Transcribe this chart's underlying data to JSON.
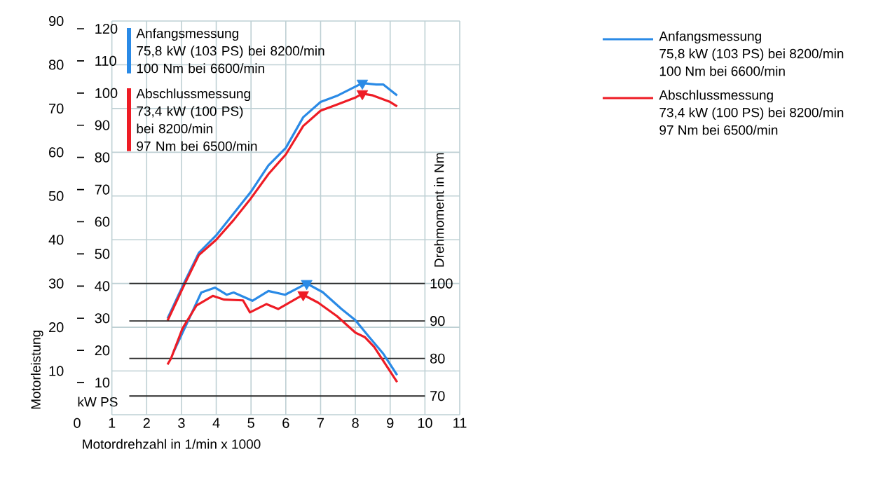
{
  "chart_data": {
    "type": "line",
    "xlabel": "Motordrehzahl in 1/min x 1000",
    "ylabel": "Motorleistung",
    "y3label": "Drehmoment in Nm",
    "xlim": [
      0,
      11
    ],
    "xticks": [
      0,
      1,
      2,
      3,
      4,
      5,
      6,
      7,
      8,
      9,
      10,
      11
    ],
    "ylim": [
      0,
      90
    ],
    "yticks": [
      10,
      20,
      30,
      40,
      50,
      60,
      70,
      80,
      90
    ],
    "y2lim": [
      0,
      122.4
    ],
    "y2ticks": [
      10,
      20,
      30,
      40,
      50,
      60,
      70,
      80,
      90,
      100,
      110,
      120
    ],
    "y3lim": [
      65,
      170
    ],
    "y3ticks": [
      70,
      80,
      90,
      100
    ],
    "grid": true,
    "legend": "right",
    "annotations": [
      "75,8 kW (103 PS) bei 8200/min",
      "100 Nm bei 6600/min",
      "73,4 kW (100 PS) bei 8200/min",
      "97 Nm bei 6500/min",
      "kW PS"
    ],
    "series": [
      {
        "name": "Anfangsmessung",
        "type": "line",
        "color": "#2a8ae6",
        "axis": "y",
        "x": [
          2.6,
          3.1,
          3.5,
          4,
          4.5,
          5,
          5.5,
          6,
          6.5,
          7,
          7.5,
          8,
          8.2,
          8.6,
          8.8,
          9.2
        ],
        "values": [
          22,
          30.5,
          37,
          41,
          46,
          51,
          57,
          61,
          68,
          71.5,
          73,
          75,
          75.8,
          75.5,
          75.5,
          73
        ]
      },
      {
        "name": "Abschlussmessung",
        "type": "line",
        "color": "#ee1c25",
        "axis": "y",
        "x": [
          2.6,
          3.1,
          3.5,
          4,
          4.5,
          5,
          5.5,
          6,
          6.5,
          7,
          7.5,
          8,
          8.2,
          8.5,
          9,
          9.2
        ],
        "values": [
          21.5,
          30,
          36.5,
          40,
          44.5,
          49.5,
          55,
          59.5,
          66,
          69.5,
          71,
          72.5,
          73.4,
          73,
          71.5,
          70.5
        ]
      },
      {
        "type": "line",
        "color": "#2a8ae6",
        "axis": "y3",
        "x": [
          2.78,
          3.16,
          3.57,
          3.97,
          4.3,
          4.5,
          5.04,
          5.5,
          5.98,
          6.6,
          7.06,
          7.6,
          8,
          8.4,
          8.8,
          9.2
        ],
        "values": [
          81.9,
          89.4,
          97.6,
          98.9,
          97,
          97.6,
          95.4,
          98,
          97,
          100,
          97.7,
          93.2,
          90.2,
          85.7,
          81.3,
          75.6
        ]
      },
      {
        "type": "line",
        "color": "#ee1c25",
        "axis": "y3",
        "x": [
          2.6,
          2.7,
          3.03,
          3.43,
          3.9,
          4.23,
          4.77,
          4.97,
          5.44,
          5.78,
          6.5,
          6.93,
          7.47,
          8,
          8.27,
          8.54,
          9.2
        ],
        "values": [
          78.4,
          80,
          88,
          94.1,
          96.7,
          95.7,
          95.5,
          92.3,
          94.5,
          93.2,
          97,
          94.9,
          91.3,
          86.9,
          85.7,
          83.1,
          73.7
        ]
      },
      {
        "type": "scatter",
        "marker": "triangle",
        "color": "#2a8ae6",
        "axis": "y",
        "x": [
          8.2
        ],
        "values": [
          75.8
        ]
      },
      {
        "type": "scatter",
        "marker": "triangle",
        "color": "#ee1c25",
        "axis": "y",
        "x": [
          8.2
        ],
        "values": [
          73.4
        ]
      },
      {
        "type": "scatter",
        "marker": "triangle",
        "color": "#2a8ae6",
        "axis": "y3",
        "x": [
          6.6
        ],
        "values": [
          100
        ]
      },
      {
        "type": "scatter",
        "marker": "triangle",
        "color": "#ee1c25",
        "axis": "y3",
        "x": [
          6.5
        ],
        "values": [
          97
        ]
      }
    ]
  }
}
